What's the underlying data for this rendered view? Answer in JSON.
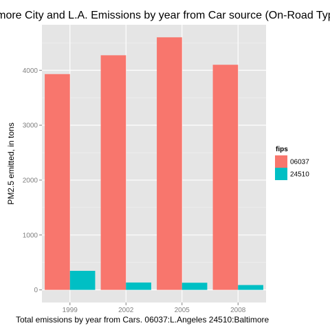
{
  "chart_data": {
    "type": "bar",
    "title": "Baltimore City and L.A. Emissions by year from Car source (On-Road Type)",
    "xlabel": "Total emissions by year from Cars.     06037:L.Angeles  24510:Baltimore",
    "ylabel": "PM2.5 emitted, in tons",
    "categories": [
      "1999",
      "2002",
      "2005",
      "2008"
    ],
    "series": [
      {
        "name": "06037",
        "color": "#F8766D",
        "values": [
          3931,
          4274,
          4601,
          4101
        ]
      },
      {
        "name": "24510",
        "color": "#00BFC4",
        "values": [
          347,
          134,
          130,
          88
        ]
      }
    ],
    "yticks": [
      0,
      1000,
      2000,
      3000,
      4000
    ],
    "ylim": [
      -230,
      4830
    ],
    "grid": true,
    "legend": {
      "title": "fips",
      "placement": "right"
    }
  }
}
